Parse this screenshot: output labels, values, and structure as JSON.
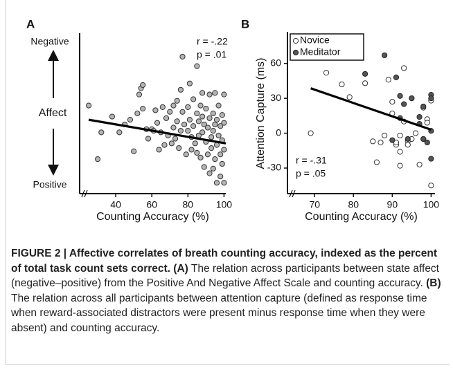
{
  "chart_data": [
    {
      "type": "scatter",
      "panel": "A",
      "xlabel": "Counting Accuracy (%)",
      "ylabel": "Affect",
      "ylabel_top": "Negative",
      "ylabel_bottom": "Positive",
      "xlim": [
        20,
        101
      ],
      "xticks": [
        40,
        60,
        80,
        100
      ],
      "ylim": [
        0,
        10
      ],
      "annotations": [
        "r = -.22",
        "p = .01"
      ],
      "series": [
        {
          "color": "#b4b4b4",
          "stroke": "#333333",
          "x": [
            25,
            30,
            32,
            38,
            42,
            45,
            48,
            50,
            52,
            53,
            54,
            55,
            55,
            57,
            58,
            60,
            61,
            62,
            63,
            64,
            65,
            66,
            67,
            68,
            69,
            70,
            71,
            72,
            72,
            73,
            74,
            74,
            75,
            76,
            76,
            77,
            77,
            78,
            79,
            80,
            80,
            81,
            81,
            82,
            82,
            83,
            83,
            84,
            85,
            85,
            86,
            86,
            87,
            87,
            88,
            88,
            89,
            89,
            90,
            90,
            91,
            91,
            92,
            92,
            92,
            93,
            93,
            94,
            94,
            94,
            95,
            95,
            96,
            96,
            96,
            97,
            97,
            98,
            98,
            98,
            99,
            99,
            99,
            100,
            100,
            100,
            100,
            85,
            88,
            95
          ],
          "values": [
            5.5,
            2.1,
            3.8,
            4.8,
            3.8,
            4.3,
            4.6,
            2.6,
            5.0,
            6.2,
            6.6,
            6.8,
            5.3,
            4.0,
            3.4,
            4.0,
            3.9,
            5.2,
            4.4,
            2.7,
            3.8,
            5.4,
            3.0,
            4.7,
            3.6,
            5.1,
            3.1,
            5.5,
            4.1,
            3.4,
            5.8,
            4.5,
            2.8,
            6.5,
            3.9,
            8.6,
            5.1,
            4.3,
            2.4,
            3.9,
            5.4,
            6.9,
            4.6,
            3.5,
            2.7,
            5.9,
            4.2,
            3.1,
            5.0,
            2.5,
            4.5,
            3.6,
            5.5,
            2.2,
            4.8,
            3.8,
            4.3,
            1.6,
            5.3,
            3.2,
            4.1,
            2.4,
            6.2,
            4.7,
            1.2,
            3.5,
            2.8,
            5.0,
            3.9,
            1.5,
            4.3,
            2.1,
            4.6,
            3.0,
            0.6,
            5.5,
            3.6,
            4.2,
            2.4,
            1.0,
            4.9,
            3.3,
            1.8,
            6.2,
            4.4,
            0.6,
            2.7,
            8.0,
            6.3,
            6.3
          ]
        }
      ],
      "trend": {
        "x": [
          25,
          101
        ],
        "y": [
          4.6,
          3.1
        ]
      }
    },
    {
      "type": "scatter",
      "panel": "B",
      "xlabel": "Counting Accuracy (%)",
      "ylabel": "Attention Capture (ms)",
      "xlim": [
        63,
        101
      ],
      "xticks": [
        70,
        80,
        90,
        100
      ],
      "ylim": [
        -52,
        86
      ],
      "yticks": [
        -30,
        0,
        30,
        60
      ],
      "annotations": [
        "r  = -.31",
        "p = .05"
      ],
      "series": [
        {
          "name": "Novice",
          "color": "#ffffff",
          "stroke": "#333333",
          "x": [
            69,
            73,
            77,
            79,
            83,
            85,
            86,
            87,
            88,
            89,
            90,
            90,
            91,
            91,
            92,
            92,
            92,
            93,
            93,
            94,
            94,
            95,
            95,
            96,
            97,
            98,
            99,
            99,
            100,
            100,
            98
          ],
          "values": [
            0,
            52,
            42,
            31,
            43,
            -7,
            -25,
            -8,
            -2,
            46,
            27,
            17,
            -10,
            -8,
            -2,
            -16,
            -28,
            56,
            10,
            -7,
            -10,
            30,
            -5,
            0,
            -27,
            22,
            12,
            9,
            -45,
            28,
            -5
          ]
        },
        {
          "name": "Meditator",
          "color": "#555555",
          "stroke": "#222222",
          "x": [
            83,
            88,
            90,
            91,
            92,
            92,
            93,
            94,
            95,
            97,
            98,
            98,
            99,
            100,
            100,
            100,
            100,
            97
          ],
          "values": [
            51,
            67,
            -6,
            48,
            32,
            13,
            25,
            -5,
            30,
            14,
            23,
            -5,
            -8,
            33,
            30,
            2,
            -22,
            8
          ]
        }
      ],
      "trend": {
        "x": [
          69,
          100
        ],
        "y": [
          38.6,
          3
        ]
      }
    }
  ],
  "caption": [
    {
      "text": "FIGURE 2 | Affective correlates of breath counting accuracy, indexed as the percent of total task count sets correct.",
      "bold": true
    },
    {
      "text": " ",
      "bold": false
    },
    {
      "text": "(A)",
      "bold": true
    },
    {
      "text": " The relation across participants between state affect (negative–positive) from the Positive And Negative Affect Scale and counting accuracy. ",
      "bold": false
    },
    {
      "text": "(B)",
      "bold": true
    },
    {
      "text": " The relation across all participants between attention capture (defined as response time when reward-associated distractors were present minus response time when they were absent) and counting accuracy.",
      "bold": false
    }
  ]
}
